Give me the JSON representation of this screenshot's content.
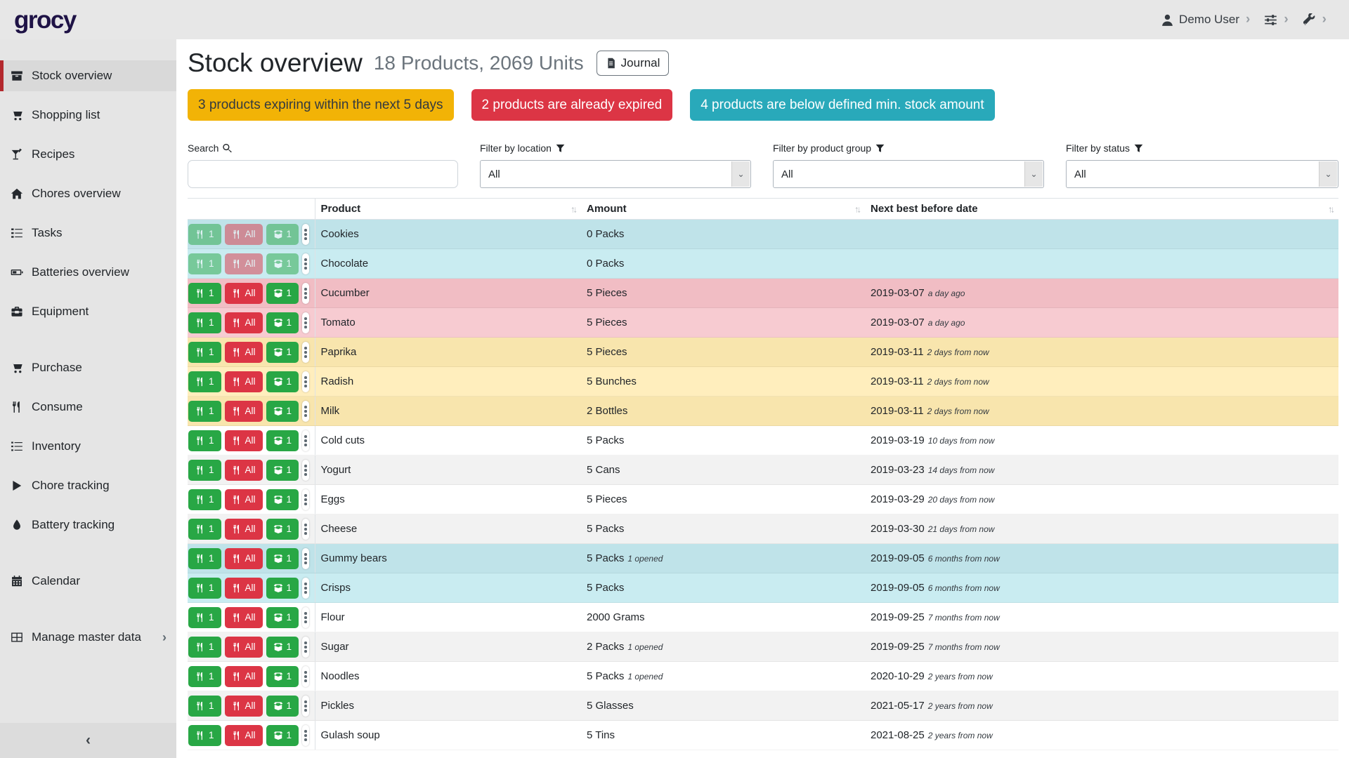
{
  "app": {
    "logo_text": "grocy"
  },
  "topbar": {
    "user_name": "Demo User"
  },
  "sidebar": {
    "items": [
      {
        "label": "Stock overview",
        "icon": "boxes",
        "active": true,
        "gap_before": false,
        "trailing_chevron": false
      },
      {
        "label": "Shopping list",
        "icon": "cart",
        "active": false,
        "gap_before": false,
        "trailing_chevron": false
      },
      {
        "label": "Recipes",
        "icon": "cocktail",
        "active": false,
        "gap_before": false,
        "trailing_chevron": false
      },
      {
        "label": "Chores overview",
        "icon": "home",
        "active": false,
        "gap_before": false,
        "trailing_chevron": false
      },
      {
        "label": "Tasks",
        "icon": "tasks",
        "active": false,
        "gap_before": false,
        "trailing_chevron": false
      },
      {
        "label": "Batteries overview",
        "icon": "battery",
        "active": false,
        "gap_before": false,
        "trailing_chevron": false
      },
      {
        "label": "Equipment",
        "icon": "toolbox",
        "active": false,
        "gap_before": false,
        "trailing_chevron": false
      },
      {
        "label": "Purchase",
        "icon": "cart",
        "active": false,
        "gap_before": true,
        "trailing_chevron": false
      },
      {
        "label": "Consume",
        "icon": "utensils",
        "active": false,
        "gap_before": false,
        "trailing_chevron": false
      },
      {
        "label": "Inventory",
        "icon": "list",
        "active": false,
        "gap_before": false,
        "trailing_chevron": false
      },
      {
        "label": "Chore tracking",
        "icon": "play",
        "active": false,
        "gap_before": false,
        "trailing_chevron": false
      },
      {
        "label": "Battery tracking",
        "icon": "drop",
        "active": false,
        "gap_before": false,
        "trailing_chevron": false
      },
      {
        "label": "Calendar",
        "icon": "calendar",
        "active": false,
        "gap_before": true,
        "trailing_chevron": false
      },
      {
        "label": "Manage master data",
        "icon": "table",
        "active": false,
        "gap_before": true,
        "trailing_chevron": true
      }
    ]
  },
  "page": {
    "title": "Stock overview",
    "subtitle": "18 Products, 2069 Units",
    "journal_button": "Journal"
  },
  "alerts": [
    {
      "text": "3 products expiring within the next 5 days",
      "bg": "#f2b306",
      "fg": "#343a40"
    },
    {
      "text": "2 products are already expired",
      "bg": "#dc3545",
      "fg": "#ffffff"
    },
    {
      "text": "4 products are below defined min. stock amount",
      "bg": "#29a9ba",
      "fg": "#ffffff"
    }
  ],
  "filters": {
    "search_label": "Search",
    "search_value": "",
    "search_placeholder": "",
    "location_label": "Filter by location",
    "location_value": "All",
    "product_group_label": "Filter by product group",
    "product_group_value": "All",
    "status_label": "Filter by status",
    "status_value": "All"
  },
  "table": {
    "columns": [
      "Product",
      "Amount",
      "Next best before date"
    ],
    "buttons": {
      "consume_one": "1",
      "consume_all": "All",
      "open_one": "1"
    },
    "rows": [
      {
        "product": "Cookies",
        "amount": "0 Packs",
        "amount_note": "",
        "date": "",
        "date_note": "",
        "bg": "#bfe3e9",
        "muted": true
      },
      {
        "product": "Chocolate",
        "amount": "0 Packs",
        "amount_note": "",
        "date": "",
        "date_note": "",
        "bg": "#c9ecf1",
        "muted": true
      },
      {
        "product": "Cucumber",
        "amount": "5 Pieces",
        "amount_note": "",
        "date": "2019-03-07",
        "date_note": "a day ago",
        "bg": "#f1bdc4",
        "muted": false
      },
      {
        "product": "Tomato",
        "amount": "5 Pieces",
        "amount_note": "",
        "date": "2019-03-07",
        "date_note": "a day ago",
        "bg": "#f7cbd1",
        "muted": false
      },
      {
        "product": "Paprika",
        "amount": "5 Pieces",
        "amount_note": "",
        "date": "2019-03-11",
        "date_note": "2 days from now",
        "bg": "#f8e5ad",
        "muted": false
      },
      {
        "product": "Radish",
        "amount": "5 Bunches",
        "amount_note": "",
        "date": "2019-03-11",
        "date_note": "2 days from now",
        "bg": "#ffeebd",
        "muted": false
      },
      {
        "product": "Milk",
        "amount": "2 Bottles",
        "amount_note": "",
        "date": "2019-03-11",
        "date_note": "2 days from now",
        "bg": "#f8e5ad",
        "muted": false
      },
      {
        "product": "Cold cuts",
        "amount": "5 Packs",
        "amount_note": "",
        "date": "2019-03-19",
        "date_note": "10 days from now",
        "bg": "#ffffff",
        "muted": false
      },
      {
        "product": "Yogurt",
        "amount": "5 Cans",
        "amount_note": "",
        "date": "2019-03-23",
        "date_note": "14 days from now",
        "bg": "#f2f2f2",
        "muted": false
      },
      {
        "product": "Eggs",
        "amount": "5 Pieces",
        "amount_note": "",
        "date": "2019-03-29",
        "date_note": "20 days from now",
        "bg": "#ffffff",
        "muted": false
      },
      {
        "product": "Cheese",
        "amount": "5 Packs",
        "amount_note": "",
        "date": "2019-03-30",
        "date_note": "21 days from now",
        "bg": "#f2f2f2",
        "muted": false
      },
      {
        "product": "Gummy bears",
        "amount": "5 Packs",
        "amount_note": "1 opened",
        "date": "2019-09-05",
        "date_note": "6 months from now",
        "bg": "#bfe3e9",
        "muted": false
      },
      {
        "product": "Crisps",
        "amount": "5 Packs",
        "amount_note": "",
        "date": "2019-09-05",
        "date_note": "6 months from now",
        "bg": "#c9ecf1",
        "muted": false
      },
      {
        "product": "Flour",
        "amount": "2000 Grams",
        "amount_note": "",
        "date": "2019-09-25",
        "date_note": "7 months from now",
        "bg": "#ffffff",
        "muted": false
      },
      {
        "product": "Sugar",
        "amount": "2 Packs",
        "amount_note": "1 opened",
        "date": "2019-09-25",
        "date_note": "7 months from now",
        "bg": "#f2f2f2",
        "muted": false
      },
      {
        "product": "Noodles",
        "amount": "5 Packs",
        "amount_note": "1 opened",
        "date": "2020-10-29",
        "date_note": "2 years from now",
        "bg": "#ffffff",
        "muted": false
      },
      {
        "product": "Pickles",
        "amount": "5 Glasses",
        "amount_note": "",
        "date": "2021-05-17",
        "date_note": "2 years from now",
        "bg": "#f2f2f2",
        "muted": false
      },
      {
        "product": "Gulash soup",
        "amount": "5 Tins",
        "amount_note": "",
        "date": "2021-08-25",
        "date_note": "2 years from now",
        "bg": "#ffffff",
        "muted": false
      }
    ]
  },
  "colors": {
    "accent_red": "#b3282d",
    "button_green": "#28a745",
    "button_red": "#dc3545",
    "row_info": "#c9ecf1",
    "row_danger": "#f7cbd1",
    "row_warning": "#ffeebd"
  }
}
